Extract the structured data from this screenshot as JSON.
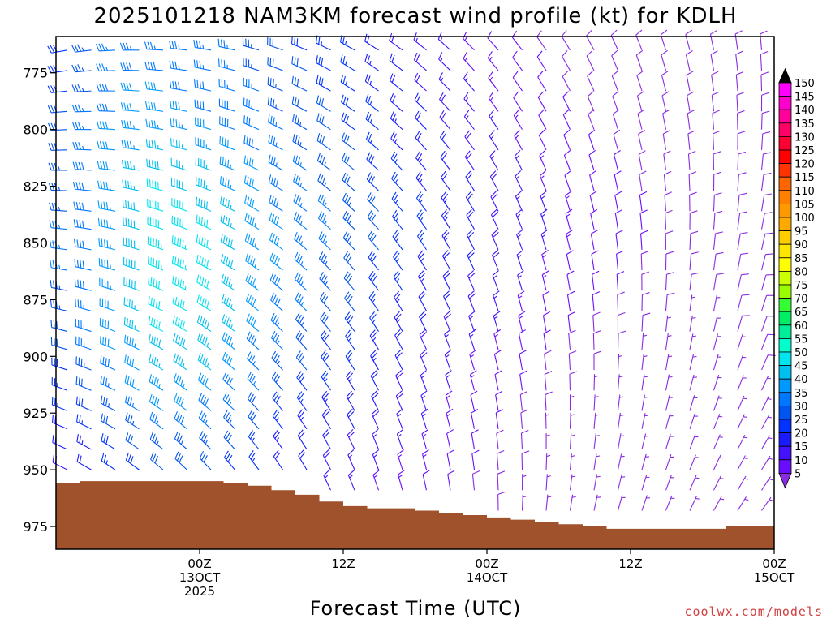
{
  "title": "2025101218 NAM3KM forecast wind profile (kt) for KDLH",
  "xlabel": "Forecast Time (UTC)",
  "credit": "coolwx.com/models",
  "chart_data": {
    "type": "wind-barb-profile",
    "title": "2025101218 NAM3KM forecast wind profile (kt) for KDLH",
    "xlabel": "Forecast Time (UTC)",
    "ylabel": "",
    "y_axis": {
      "reversed": true,
      "ylim": [
        985,
        759
      ],
      "ticks": [
        775,
        800,
        825,
        850,
        875,
        900,
        925,
        950,
        975
      ]
    },
    "x_axis": {
      "xlim": [
        -6,
        24
      ],
      "ticks": [
        {
          "hour": 0,
          "lines": [
            "00Z",
            "13OCT",
            "2025"
          ]
        },
        {
          "hour": 6,
          "lines": [
            "12Z"
          ]
        },
        {
          "hour": 12,
          "lines": [
            "00Z",
            "14OCT"
          ]
        },
        {
          "hour": 18,
          "lines": [
            "12Z"
          ]
        },
        {
          "hour": 24,
          "lines": [
            "00Z",
            "15OCT"
          ]
        }
      ]
    },
    "levels_hpa": [
      765,
      774,
      783,
      792,
      800,
      809,
      818,
      827,
      836,
      844,
      853,
      862,
      871,
      880,
      889,
      897,
      906,
      915,
      924,
      932,
      941,
      950,
      959,
      968
    ],
    "column_step_hours": 1,
    "wind_knots": [
      [
        28,
        33,
        36,
        36,
        37,
        36,
        36,
        35,
        33,
        31,
        29,
        27,
        25,
        22,
        19,
        17,
        15,
        13,
        12,
        11,
        9,
        8,
        8,
        8,
        8,
        8,
        8,
        8,
        8,
        8
      ],
      [
        28,
        33,
        37,
        38,
        38,
        37,
        37,
        36,
        34,
        32,
        30,
        28,
        26,
        23,
        20,
        18,
        16,
        14,
        13,
        11,
        10,
        9,
        8,
        8,
        8,
        8,
        8,
        8,
        8,
        8
      ],
      [
        29,
        34,
        38,
        40,
        40,
        39,
        38,
        37,
        35,
        33,
        31,
        29,
        27,
        24,
        21,
        19,
        17,
        15,
        13,
        12,
        10,
        9,
        8,
        8,
        8,
        8,
        8,
        8,
        8,
        8
      ],
      [
        30,
        35,
        39,
        41,
        42,
        41,
        39,
        38,
        36,
        34,
        32,
        30,
        28,
        25,
        22,
        20,
        18,
        16,
        14,
        12,
        11,
        10,
        9,
        8,
        8,
        8,
        8,
        8,
        8,
        8
      ],
      [
        31,
        36,
        40,
        43,
        44,
        43,
        41,
        39,
        37,
        35,
        33,
        31,
        29,
        26,
        23,
        21,
        19,
        17,
        15,
        13,
        11,
        10,
        9,
        8,
        8,
        8,
        8,
        8,
        8,
        8
      ],
      [
        32,
        37,
        41,
        44,
        46,
        45,
        43,
        41,
        38,
        36,
        34,
        32,
        30,
        27,
        24,
        22,
        20,
        18,
        16,
        14,
        12,
        11,
        10,
        9,
        8,
        8,
        8,
        8,
        8,
        8
      ],
      [
        33,
        38,
        42,
        46,
        48,
        47,
        45,
        43,
        40,
        37,
        35,
        33,
        31,
        28,
        25,
        23,
        21,
        19,
        17,
        15,
        13,
        12,
        11,
        10,
        9,
        8,
        8,
        8,
        8,
        8
      ],
      [
        34,
        38,
        43,
        47,
        50,
        49,
        47,
        44,
        41,
        38,
        36,
        34,
        32,
        29,
        26,
        24,
        22,
        20,
        18,
        16,
        14,
        12,
        11,
        10,
        9,
        8,
        8,
        8,
        8,
        8
      ],
      [
        34,
        39,
        44,
        48,
        51,
        51,
        49,
        46,
        42,
        39,
        37,
        35,
        33,
        30,
        27,
        25,
        23,
        21,
        19,
        17,
        15,
        13,
        12,
        11,
        10,
        9,
        8,
        8,
        8,
        8
      ],
      [
        35,
        39,
        44,
        48,
        52,
        52,
        50,
        47,
        43,
        40,
        37,
        35,
        33,
        30,
        27,
        25,
        23,
        21,
        19,
        17,
        15,
        13,
        12,
        11,
        10,
        9,
        8,
        8,
        8,
        8
      ],
      [
        35,
        39,
        44,
        49,
        53,
        53,
        51,
        48,
        44,
        40,
        37,
        35,
        33,
        30,
        27,
        25,
        23,
        21,
        19,
        17,
        15,
        13,
        12,
        11,
        10,
        9,
        8,
        8,
        8,
        9
      ],
      [
        35,
        39,
        44,
        49,
        53,
        53,
        51,
        48,
        44,
        40,
        37,
        34,
        32,
        29,
        26,
        24,
        22,
        20,
        18,
        16,
        14,
        12,
        11,
        10,
        9,
        8,
        8,
        8,
        8,
        9
      ],
      [
        34,
        38,
        43,
        48,
        52,
        53,
        51,
        47,
        43,
        39,
        36,
        33,
        31,
        28,
        25,
        23,
        21,
        19,
        17,
        15,
        13,
        12,
        11,
        10,
        9,
        8,
        8,
        8,
        8,
        9
      ],
      [
        33,
        37,
        42,
        47,
        51,
        52,
        50,
        46,
        42,
        38,
        35,
        32,
        30,
        27,
        24,
        22,
        20,
        18,
        16,
        14,
        12,
        11,
        10,
        9,
        8,
        8,
        7,
        7,
        8,
        9
      ],
      [
        32,
        36,
        41,
        46,
        50,
        51,
        49,
        45,
        41,
        37,
        34,
        31,
        29,
        26,
        23,
        21,
        19,
        17,
        15,
        13,
        11,
        10,
        9,
        8,
        8,
        7,
        7,
        7,
        8,
        9
      ],
      [
        31,
        35,
        40,
        44,
        48,
        49,
        47,
        43,
        39,
        35,
        32,
        29,
        27,
        24,
        21,
        19,
        17,
        15,
        13,
        12,
        10,
        9,
        8,
        8,
        7,
        7,
        7,
        7,
        7,
        8
      ],
      [
        29,
        33,
        38,
        42,
        46,
        47,
        45,
        41,
        37,
        33,
        30,
        28,
        26,
        23,
        20,
        18,
        16,
        14,
        12,
        11,
        9,
        8,
        8,
        7,
        7,
        7,
        6,
        6,
        7,
        8
      ],
      [
        27,
        31,
        36,
        40,
        43,
        44,
        42,
        39,
        35,
        31,
        28,
        26,
        24,
        21,
        19,
        17,
        15,
        13,
        11,
        10,
        9,
        8,
        7,
        7,
        6,
        6,
        6,
        6,
        6,
        7
      ],
      [
        25,
        29,
        33,
        37,
        40,
        41,
        39,
        36,
        32,
        29,
        26,
        24,
        22,
        20,
        18,
        16,
        14,
        12,
        10,
        9,
        8,
        7,
        7,
        6,
        6,
        6,
        5,
        5,
        6,
        6
      ],
      [
        22,
        26,
        30,
        34,
        37,
        38,
        36,
        33,
        30,
        27,
        24,
        22,
        20,
        18,
        16,
        15,
        13,
        11,
        10,
        8,
        7,
        7,
        6,
        6,
        5,
        5,
        5,
        5,
        5,
        6
      ],
      [
        20,
        24,
        28,
        31,
        33,
        34,
        33,
        30,
        27,
        24,
        22,
        20,
        19,
        17,
        15,
        14,
        12,
        10,
        9,
        8,
        7,
        6,
        6,
        5,
        5,
        5,
        5,
        5,
        5,
        5
      ],
      [
        18,
        21,
        25,
        28,
        30,
        31,
        30,
        28,
        25,
        22,
        20,
        19,
        17,
        15,
        14,
        13,
        11,
        10,
        9,
        8,
        7,
        6,
        5,
        5,
        5,
        5,
        5,
        5,
        5,
        5
      ],
      [
        16,
        19,
        22,
        25,
        27,
        28,
        27,
        25,
        23,
        21,
        19,
        17,
        16,
        14,
        13,
        12,
        10,
        9,
        8,
        7,
        6,
        6,
        5,
        5,
        5,
        5,
        5,
        5,
        5,
        5
      ],
      [
        15,
        17,
        20,
        23,
        25,
        26,
        25,
        23,
        21,
        19,
        17,
        16,
        15,
        13,
        12,
        11,
        10,
        9,
        8,
        7,
        6,
        5,
        5,
        5,
        5,
        5,
        5,
        5,
        5,
        5
      ]
    ],
    "direction_summary": "westerly to west-northwesterly aloft early, veering to northerly and weakening with time",
    "terrain": {
      "color": "#a0522d",
      "surface_pressure_hpa": [
        956,
        955,
        955,
        955,
        955,
        955,
        955,
        956,
        957,
        959,
        961,
        964,
        966,
        967,
        967,
        968,
        969,
        970,
        971,
        972,
        973,
        974,
        975,
        976,
        976,
        976,
        976,
        976,
        975,
        975,
        976
      ]
    },
    "colorbar": {
      "ticks": [
        150,
        145,
        140,
        135,
        130,
        125,
        120,
        115,
        110,
        105,
        100,
        95,
        90,
        85,
        80,
        75,
        70,
        65,
        60,
        55,
        50,
        45,
        40,
        35,
        30,
        25,
        20,
        15,
        10,
        5
      ],
      "colors": [
        "#ff00ff",
        "#ff00cc",
        "#ff0099",
        "#ff0066",
        "#ff0033",
        "#ff0000",
        "#ff3300",
        "#ff6600",
        "#ff7f00",
        "#ff9900",
        "#ffaa00",
        "#ffcc00",
        "#ffe600",
        "#ffff00",
        "#ccff00",
        "#99ff00",
        "#33ff33",
        "#00ee66",
        "#00ee99",
        "#00ffcc",
        "#00e5ee",
        "#00c0f0",
        "#0099ff",
        "#0077ff",
        "#0055ee",
        "#0033ff",
        "#1a1aff",
        "#4411ff",
        "#6a0dff",
        "#8a2be2"
      ]
    }
  }
}
